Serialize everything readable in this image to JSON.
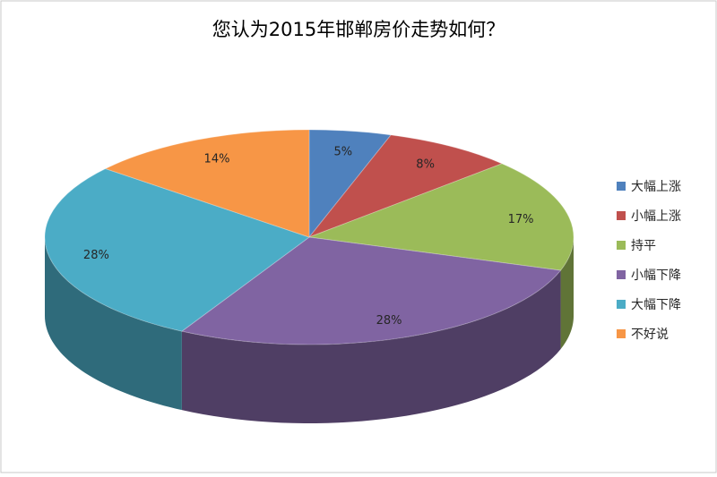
{
  "chart_data": {
    "type": "pie3d",
    "title": "您认为2015年邯郸房价走势如何？",
    "categories": [
      "大幅上涨",
      "小幅上涨",
      "持平",
      "小幅下降",
      "大幅下降",
      "不好说"
    ],
    "values": [
      5,
      8,
      17,
      28,
      28,
      14
    ],
    "value_labels": [
      "5%",
      "8%",
      "17%",
      "28%",
      "28%",
      "14%"
    ],
    "colors": [
      "#4f81bd",
      "#c0504d",
      "#9bbb59",
      "#8064a2",
      "#4bacc6",
      "#f79646"
    ],
    "legend": "right"
  }
}
